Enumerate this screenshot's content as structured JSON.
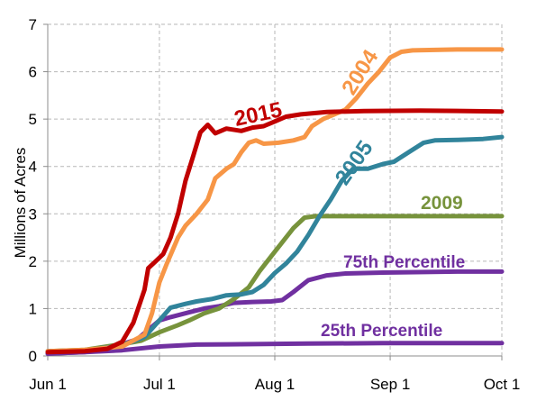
{
  "chart_data": {
    "type": "line",
    "title": "",
    "xlabel": "",
    "ylabel": "Millions of Acres",
    "ylim": [
      0,
      7
    ],
    "xlim": [
      0,
      122
    ],
    "grid": true,
    "legend": "none",
    "x_ticks": [
      {
        "x": 0,
        "label": "Jun 1"
      },
      {
        "x": 30,
        "label": "Jul 1"
      },
      {
        "x": 61,
        "label": "Aug 1"
      },
      {
        "x": 92,
        "label": "Sep 1"
      },
      {
        "x": 122,
        "label": "Oct 1"
      }
    ],
    "y_ticks": [
      0,
      1,
      2,
      3,
      4,
      5,
      6,
      7
    ],
    "series": [
      {
        "name": "25th Percentile",
        "color": "#7030a0",
        "points": [
          [
            0,
            0.05
          ],
          [
            10,
            0.08
          ],
          [
            20,
            0.12
          ],
          [
            30,
            0.2
          ],
          [
            40,
            0.24
          ],
          [
            55,
            0.25
          ],
          [
            70,
            0.26
          ],
          [
            90,
            0.27
          ],
          [
            110,
            0.27
          ],
          [
            122,
            0.27
          ]
        ]
      },
      {
        "name": "75th Percentile",
        "color": "#7030a0",
        "points": [
          [
            0,
            0.05
          ],
          [
            10,
            0.08
          ],
          [
            18,
            0.2
          ],
          [
            24,
            0.35
          ],
          [
            27,
            0.55
          ],
          [
            30,
            0.75
          ],
          [
            33,
            0.82
          ],
          [
            38,
            0.92
          ],
          [
            42,
            1.0
          ],
          [
            46,
            1.05
          ],
          [
            50,
            1.12
          ],
          [
            55,
            1.14
          ],
          [
            60,
            1.15
          ],
          [
            63,
            1.18
          ],
          [
            66,
            1.35
          ],
          [
            70,
            1.6
          ],
          [
            75,
            1.7
          ],
          [
            80,
            1.74
          ],
          [
            90,
            1.76
          ],
          [
            110,
            1.78
          ],
          [
            122,
            1.78
          ]
        ]
      },
      {
        "name": "2009",
        "color": "#77933c",
        "points": [
          [
            0,
            0.1
          ],
          [
            10,
            0.13
          ],
          [
            20,
            0.25
          ],
          [
            25,
            0.32
          ],
          [
            30,
            0.5
          ],
          [
            35,
            0.65
          ],
          [
            38,
            0.75
          ],
          [
            42,
            0.9
          ],
          [
            46,
            1.0
          ],
          [
            50,
            1.2
          ],
          [
            54,
            1.45
          ],
          [
            57,
            1.8
          ],
          [
            60,
            2.1
          ],
          [
            63,
            2.4
          ],
          [
            66,
            2.7
          ],
          [
            69,
            2.92
          ],
          [
            72,
            2.95
          ],
          [
            80,
            2.95
          ],
          [
            100,
            2.95
          ],
          [
            122,
            2.95
          ]
        ]
      },
      {
        "name": "2005",
        "color": "#31849b",
        "points": [
          [
            0,
            0.1
          ],
          [
            10,
            0.12
          ],
          [
            20,
            0.22
          ],
          [
            26,
            0.4
          ],
          [
            30,
            0.75
          ],
          [
            33,
            1.02
          ],
          [
            37,
            1.1
          ],
          [
            40,
            1.15
          ],
          [
            44,
            1.2
          ],
          [
            48,
            1.28
          ],
          [
            52,
            1.3
          ],
          [
            55,
            1.35
          ],
          [
            58,
            1.5
          ],
          [
            61,
            1.75
          ],
          [
            64,
            1.95
          ],
          [
            67,
            2.2
          ],
          [
            70,
            2.55
          ],
          [
            73,
            2.95
          ],
          [
            76,
            3.3
          ],
          [
            79,
            3.7
          ],
          [
            82,
            3.95
          ],
          [
            86,
            3.95
          ],
          [
            90,
            4.05
          ],
          [
            93,
            4.1
          ],
          [
            97,
            4.3
          ],
          [
            101,
            4.5
          ],
          [
            104,
            4.55
          ],
          [
            110,
            4.56
          ],
          [
            117,
            4.58
          ],
          [
            122,
            4.62
          ]
        ]
      },
      {
        "name": "2004",
        "color": "#f79646",
        "points": [
          [
            0,
            0.1
          ],
          [
            10,
            0.13
          ],
          [
            20,
            0.2
          ],
          [
            26,
            0.45
          ],
          [
            28,
            0.9
          ],
          [
            30,
            1.55
          ],
          [
            32,
            1.95
          ],
          [
            35,
            2.5
          ],
          [
            37,
            2.75
          ],
          [
            40,
            3.0
          ],
          [
            43,
            3.3
          ],
          [
            45,
            3.75
          ],
          [
            48,
            3.95
          ],
          [
            50,
            4.05
          ],
          [
            52,
            4.3
          ],
          [
            54,
            4.5
          ],
          [
            56,
            4.55
          ],
          [
            58,
            4.48
          ],
          [
            62,
            4.5
          ],
          [
            66,
            4.55
          ],
          [
            69,
            4.62
          ],
          [
            71,
            4.85
          ],
          [
            74,
            5.0
          ],
          [
            77,
            5.1
          ],
          [
            80,
            5.2
          ],
          [
            83,
            5.45
          ],
          [
            86,
            5.75
          ],
          [
            89,
            6.0
          ],
          [
            92,
            6.3
          ],
          [
            95,
            6.42
          ],
          [
            98,
            6.45
          ],
          [
            110,
            6.47
          ],
          [
            122,
            6.47
          ]
        ]
      },
      {
        "name": "2015",
        "color": "#c00000",
        "points": [
          [
            0,
            0.08
          ],
          [
            10,
            0.1
          ],
          [
            16,
            0.15
          ],
          [
            20,
            0.3
          ],
          [
            23,
            0.7
          ],
          [
            26,
            1.4
          ],
          [
            27,
            1.85
          ],
          [
            29,
            2.0
          ],
          [
            31,
            2.15
          ],
          [
            33,
            2.5
          ],
          [
            35,
            3.0
          ],
          [
            37,
            3.7
          ],
          [
            39,
            4.2
          ],
          [
            41,
            4.72
          ],
          [
            43,
            4.88
          ],
          [
            45,
            4.7
          ],
          [
            48,
            4.8
          ],
          [
            52,
            4.75
          ],
          [
            55,
            4.82
          ],
          [
            58,
            4.85
          ],
          [
            61,
            4.95
          ],
          [
            64,
            5.05
          ],
          [
            68,
            5.1
          ],
          [
            75,
            5.15
          ],
          [
            85,
            5.17
          ],
          [
            100,
            5.18
          ],
          [
            122,
            5.16
          ]
        ]
      }
    ],
    "annotations": [
      {
        "text": "2015",
        "color": "#c00000"
      },
      {
        "text": "2004",
        "color": "#f79646"
      },
      {
        "text": "2005",
        "color": "#31849b"
      },
      {
        "text": "2009",
        "color": "#77933c"
      },
      {
        "text": "75th Percentile",
        "color": "#7030a0"
      },
      {
        "text": "25th Percentile",
        "color": "#7030a0"
      }
    ]
  }
}
